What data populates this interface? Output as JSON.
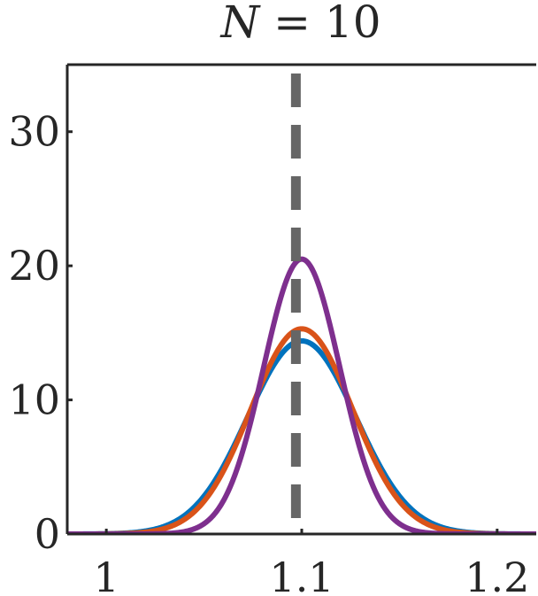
{
  "chart_data": {
    "type": "line",
    "title": "N = 10",
    "title_parts": {
      "variable": "N",
      "rest": " = 10"
    },
    "xlabel": "",
    "ylabel": "",
    "xlim": [
      0.98,
      1.22
    ],
    "ylim": [
      0,
      35
    ],
    "xticks": [
      1,
      1.1,
      1.2
    ],
    "xtick_labels": [
      "1",
      "1.1",
      "1.2"
    ],
    "yticks": [
      0,
      10,
      20,
      30
    ],
    "ytick_labels": [
      "0",
      "10",
      "20",
      "30"
    ],
    "grid": false,
    "reference_line": {
      "x": 1.097,
      "style": "dashed",
      "color": "#666666"
    },
    "series": [
      {
        "color": "#0072BD",
        "peak_x": 1.1,
        "peak_y": 14.4,
        "sigma": 0.0277
      },
      {
        "color": "#D95319",
        "peak_x": 1.1,
        "peak_y": 15.3,
        "sigma": 0.0261
      },
      {
        "color": "#7E2F8E",
        "peak_x": 1.1,
        "peak_y": 20.5,
        "sigma": 0.0195
      }
    ]
  }
}
